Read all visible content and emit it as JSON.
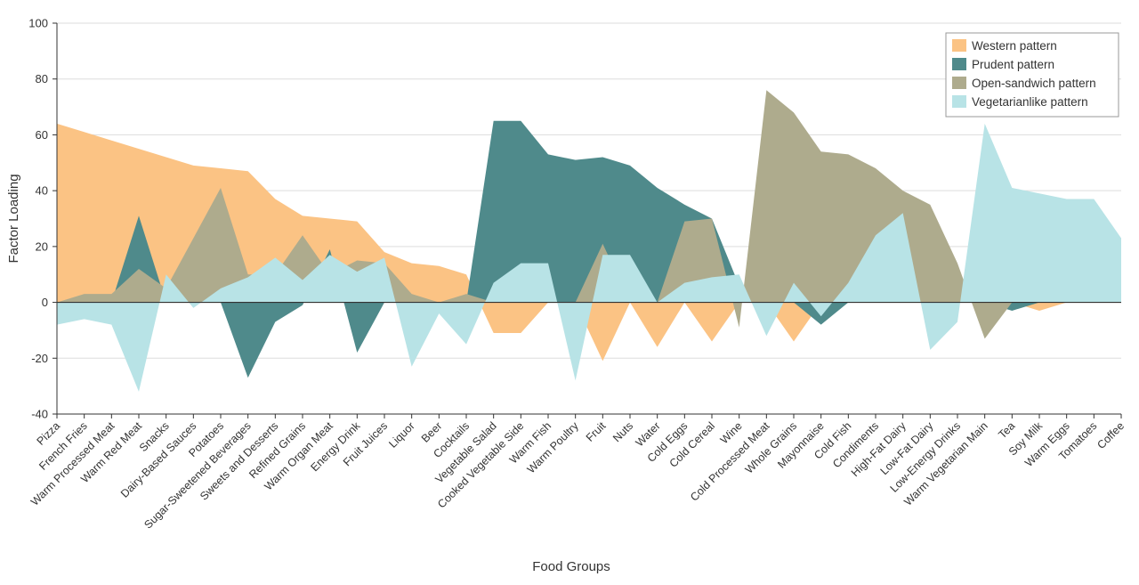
{
  "chart_data": {
    "type": "area",
    "xlabel": "Food Groups",
    "ylabel": "Factor Loading",
    "ylim": [
      -40,
      100
    ],
    "yticks": [
      -40,
      -20,
      0,
      20,
      40,
      60,
      80,
      100
    ],
    "grid": true,
    "legend_position": "top-right",
    "categories": [
      "Pizza",
      "French Fries",
      "Warm Processed Meat",
      "Warm Red Meat",
      "Snacks",
      "Dairy-Based Sauces",
      "Potatoes",
      "Sugar-Sweetened Beverages",
      "Sweets and Desserts",
      "Refined Grains",
      "Warm Organ Meat",
      "Energy Drink",
      "Fruit Juices",
      "Liquor",
      "Beer",
      "Cocktails",
      "Vegetable Salad",
      "Cooked Vegetable Side",
      "Warm Fish",
      "Warm Poultry",
      "Fruit",
      "Nuts",
      "Water",
      "Cold Eggs",
      "Cold Cereal",
      "Wine",
      "Cold Processed Meat",
      "Whole Grains",
      "Mayonnaise",
      "Cold Fish",
      "Condiments",
      "High-Fat Dairy",
      "Low-Fat Dairy",
      "Low-Energy Drinks",
      "Warm Vegetarian Main",
      "Tea",
      "Soy Milk",
      "Warm Eggs",
      "Tomatoes",
      "Coffee"
    ],
    "series": [
      {
        "name": "Western pattern",
        "color": "#fbc384",
        "values": [
          64,
          61,
          58,
          55,
          52,
          49,
          48,
          47,
          37,
          31,
          30,
          29,
          18,
          14,
          13,
          10,
          -11,
          -11,
          0,
          0,
          -21,
          0,
          -16,
          0,
          -14,
          0,
          0,
          -14,
          0,
          0,
          0,
          0,
          0,
          0,
          0,
          0,
          -3,
          0,
          0,
          0
        ]
      },
      {
        "name": "Prudent pattern",
        "color": "#4f8a8b",
        "values": [
          0,
          0,
          0,
          31,
          0,
          0,
          0,
          -27,
          -7,
          -1,
          19,
          -18,
          0,
          2,
          0,
          0,
          65,
          65,
          53,
          51,
          52,
          49,
          41,
          35,
          30,
          6,
          0,
          0,
          -8,
          0,
          0,
          0,
          0,
          0,
          0,
          -3,
          0,
          0,
          0,
          0
        ]
      },
      {
        "name": "Open-sandwich pattern",
        "color": "#aeab8d",
        "values": [
          0,
          3,
          3,
          12,
          5,
          23,
          41,
          10,
          10,
          24,
          10,
          15,
          14,
          3,
          0,
          3,
          0,
          0,
          0,
          0,
          21,
          0,
          0,
          29,
          30,
          -9,
          76,
          68,
          54,
          53,
          48,
          40,
          35,
          14,
          -13,
          0,
          0,
          0,
          0,
          0
        ]
      },
      {
        "name": "Vegetarianlike pattern",
        "color": "#b8e3e6",
        "values": [
          -8,
          -6,
          -8,
          -32,
          10,
          -2,
          5,
          9,
          16,
          8,
          17,
          11,
          16,
          -23,
          -4,
          -15,
          7,
          14,
          14,
          -28,
          17,
          17,
          0,
          7,
          9,
          10,
          -12,
          7,
          -5,
          7,
          24,
          32,
          -17,
          -7,
          64,
          41,
          39,
          37,
          37,
          23
        ]
      }
    ]
  }
}
